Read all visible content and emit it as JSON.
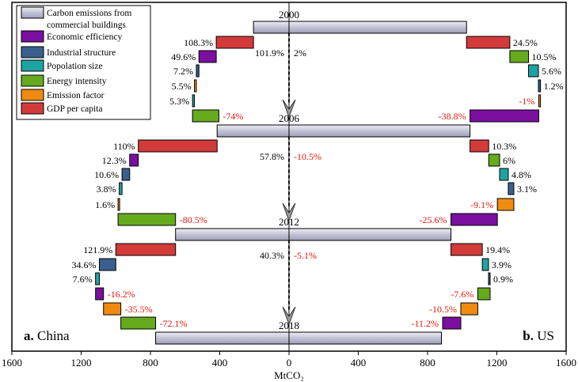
{
  "chart_data": {
    "type": "bar",
    "xlabel": "MtCO₂",
    "xlim": [
      -1600,
      1600
    ],
    "xticks": [
      -1600,
      -1200,
      -800,
      -400,
      0,
      400,
      800,
      1200,
      1600
    ],
    "xtick_labels": [
      "1600",
      "1200",
      "800",
      "400",
      "0",
      "400",
      "800",
      "1200",
      "1600"
    ],
    "years": [
      "2000",
      "2006",
      "2012",
      "2018"
    ],
    "colors": {
      "emissions": "#c2c2d6",
      "econ_eff": "#7a0fa0",
      "industrial": "#3a5f8f",
      "population": "#1ea3a3",
      "energy_int": "#66aa1e",
      "emission_factor": "#f08a10",
      "gdp": "#d33a3a"
    },
    "legend": [
      {
        "key": "emissions",
        "label": "Carbon emissions from commercial buildings"
      },
      {
        "key": "econ_eff",
        "label": "Economic efficiency"
      },
      {
        "key": "industrial",
        "label": "Industrial structure"
      },
      {
        "key": "population",
        "label": "Popolation size"
      },
      {
        "key": "energy_int",
        "label": "Energy intensity"
      },
      {
        "key": "emission_factor",
        "label": "Emission factor"
      },
      {
        "key": "gdp",
        "label": "GDP per capita"
      }
    ],
    "panel_labels": {
      "china_letter": "a.",
      "china_name": " China",
      "us_letter": "b.",
      "us_name": " US"
    },
    "emission_bars": [
      {
        "year": "2000",
        "china": 205,
        "us": 1025
      },
      {
        "year": "2006",
        "china": 415,
        "us": 1045
      },
      {
        "year": "2012",
        "china": 655,
        "us": 935
      },
      {
        "year": "2018",
        "china": 770,
        "us": 880
      }
    ],
    "period_totals": [
      {
        "period": "2000-2006",
        "china": "101.9%",
        "us": "2%",
        "china_negative": false,
        "us_negative": false
      },
      {
        "period": "2006-2012",
        "china": "57.8%",
        "us": "-10.5%",
        "china_negative": false,
        "us_negative": true
      },
      {
        "period": "2012-2018",
        "china": "40.3%",
        "us": "-5.1%",
        "china_negative": false,
        "us_negative": true
      }
    ],
    "factors": [
      {
        "country": "china",
        "period": "2000-2006",
        "factor": "gdp",
        "from": 205,
        "to": 420,
        "label": "108.3%",
        "negative": false
      },
      {
        "country": "china",
        "period": "2000-2006",
        "factor": "econ_eff",
        "from": 420,
        "to": 520,
        "label": "49.6%",
        "negative": false
      },
      {
        "country": "china",
        "period": "2000-2006",
        "factor": "industrial",
        "from": 520,
        "to": 535,
        "label": "7.2%",
        "negative": false
      },
      {
        "country": "china",
        "period": "2000-2006",
        "factor": "emission_factor",
        "from": 535,
        "to": 546,
        "label": "5.5%",
        "negative": false
      },
      {
        "country": "china",
        "period": "2000-2006",
        "factor": "population",
        "from": 546,
        "to": 557,
        "label": "5.3%",
        "negative": false
      },
      {
        "country": "china",
        "period": "2000-2006",
        "factor": "energy_int",
        "from": 557,
        "to": 405,
        "label": "-74%",
        "negative": true
      },
      {
        "country": "us",
        "period": "2000-2006",
        "factor": "gdp",
        "from": 1025,
        "to": 1275,
        "label": "24.5%",
        "negative": false
      },
      {
        "country": "us",
        "period": "2000-2006",
        "factor": "energy_int",
        "from": 1275,
        "to": 1383,
        "label": "10.5%",
        "negative": false
      },
      {
        "country": "us",
        "period": "2000-2006",
        "factor": "population",
        "from": 1383,
        "to": 1440,
        "label": "5.6%",
        "negative": false
      },
      {
        "country": "us",
        "period": "2000-2006",
        "factor": "industrial",
        "from": 1440,
        "to": 1452,
        "label": "1.2%",
        "negative": false
      },
      {
        "country": "us",
        "period": "2000-2006",
        "factor": "emission_factor",
        "from": 1452,
        "to": 1442,
        "label": "-1%",
        "negative": true
      },
      {
        "country": "us",
        "period": "2000-2006",
        "factor": "econ_eff",
        "from": 1442,
        "to": 1045,
        "label": "-38.8%",
        "negative": true
      },
      {
        "country": "china",
        "period": "2006-2012",
        "factor": "gdp",
        "from": 415,
        "to": 870,
        "label": "110%",
        "negative": false
      },
      {
        "country": "china",
        "period": "2006-2012",
        "factor": "econ_eff",
        "from": 870,
        "to": 920,
        "label": "12.3%",
        "negative": false
      },
      {
        "country": "china",
        "period": "2006-2012",
        "factor": "industrial",
        "from": 920,
        "to": 964,
        "label": "10.6%",
        "negative": false
      },
      {
        "country": "china",
        "period": "2006-2012",
        "factor": "population",
        "from": 964,
        "to": 980,
        "label": "3.8%",
        "negative": false
      },
      {
        "country": "china",
        "period": "2006-2012",
        "factor": "emission_factor",
        "from": 980,
        "to": 987,
        "label": "1.6%",
        "negative": false
      },
      {
        "country": "china",
        "period": "2006-2012",
        "factor": "energy_int",
        "from": 987,
        "to": 655,
        "label": "-80.5%",
        "negative": true
      },
      {
        "country": "us",
        "period": "2006-2012",
        "factor": "gdp",
        "from": 1045,
        "to": 1153,
        "label": "10.3%",
        "negative": false
      },
      {
        "country": "us",
        "period": "2006-2012",
        "factor": "energy_int",
        "from": 1153,
        "to": 1216,
        "label": "6%",
        "negative": false
      },
      {
        "country": "us",
        "period": "2006-2012",
        "factor": "population",
        "from": 1216,
        "to": 1266,
        "label": "4.8%",
        "negative": false
      },
      {
        "country": "us",
        "period": "2006-2012",
        "factor": "industrial",
        "from": 1266,
        "to": 1298,
        "label": "3.1%",
        "negative": false
      },
      {
        "country": "us",
        "period": "2006-2012",
        "factor": "emission_factor",
        "from": 1298,
        "to": 1203,
        "label": "-9.1%",
        "negative": true
      },
      {
        "country": "us",
        "period": "2006-2012",
        "factor": "econ_eff",
        "from": 1203,
        "to": 935,
        "label": "-25.6%",
        "negative": true
      },
      {
        "country": "china",
        "period": "2012-2018",
        "factor": "gdp",
        "from": 655,
        "to": 1000,
        "label": "121.9%",
        "negative": false
      },
      {
        "country": "china",
        "period": "2012-2018",
        "factor": "industrial",
        "from": 1000,
        "to": 1095,
        "label": "34.6%",
        "negative": false
      },
      {
        "country": "china",
        "period": "2012-2018",
        "factor": "population",
        "from": 1095,
        "to": 1117,
        "label": "7.6%",
        "negative": false
      },
      {
        "country": "china",
        "period": "2012-2018",
        "factor": "econ_eff",
        "from": 1117,
        "to": 1071,
        "label": "-16.2%",
        "negative": true
      },
      {
        "country": "china",
        "period": "2012-2018",
        "factor": "emission_factor",
        "from": 1071,
        "to": 971,
        "label": "-35.5%",
        "negative": true
      },
      {
        "country": "china",
        "period": "2012-2018",
        "factor": "energy_int",
        "from": 971,
        "to": 770,
        "label": "-72.1%",
        "negative": true
      },
      {
        "country": "us",
        "period": "2012-2018",
        "factor": "gdp",
        "from": 935,
        "to": 1116,
        "label": "19.4%",
        "negative": false
      },
      {
        "country": "us",
        "period": "2012-2018",
        "factor": "population",
        "from": 1116,
        "to": 1152,
        "label": "3.9%",
        "negative": false
      },
      {
        "country": "us",
        "period": "2012-2018",
        "factor": "industrial",
        "from": 1152,
        "to": 1161,
        "label": "0.9%",
        "negative": false
      },
      {
        "country": "us",
        "period": "2012-2018",
        "factor": "energy_int",
        "from": 1161,
        "to": 1090,
        "label": "-7.6%",
        "negative": true
      },
      {
        "country": "us",
        "period": "2012-2018",
        "factor": "emission_factor",
        "from": 1090,
        "to": 992,
        "label": "-10.5%",
        "negative": true
      },
      {
        "country": "us",
        "period": "2012-2018",
        "factor": "econ_eff",
        "from": 992,
        "to": 887,
        "label": "-11.2%",
        "negative": true
      }
    ]
  }
}
